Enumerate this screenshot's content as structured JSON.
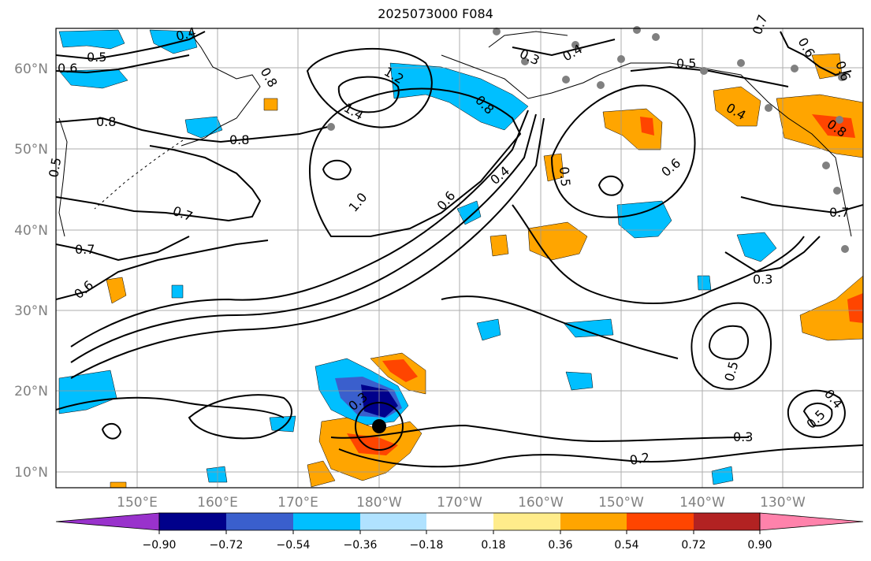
{
  "title": "2025073000 F084",
  "map": {
    "lat_labels": [
      "60°N",
      "50°N",
      "40°N",
      "30°N",
      "20°N",
      "10°N"
    ],
    "lon_labels": [
      "150°E",
      "160°E",
      "170°E",
      "180°W",
      "170°W",
      "160°W",
      "150°W",
      "140°W",
      "130°W"
    ],
    "contour_labels": [
      "0.4",
      "0.5",
      "0.6",
      "0.8",
      "1.2",
      "1.4",
      "0.8",
      "0.3",
      "0.4",
      "0.5",
      "0.7",
      "0.6",
      "0.8",
      "0.5",
      "0.8",
      "0.4",
      "0.8",
      "0.7",
      "1.0",
      "0.6",
      "0.4",
      "0.5",
      "0.6",
      "0.7",
      "0.7",
      "0.3",
      "0.6",
      "0.5",
      "0.3",
      "0.2",
      "0.3",
      "0.4",
      "0.5",
      "0.6"
    ],
    "colors": {
      "land_line": "#000000",
      "grid": "#999999",
      "contour": "#000000",
      "storm_marker": "#000000",
      "station": "#808080"
    }
  },
  "colorbar": {
    "ticks": [
      "−0.90",
      "−0.72",
      "−0.54",
      "−0.36",
      "−0.18",
      "0.18",
      "0.36",
      "0.54",
      "0.72",
      "0.90"
    ],
    "colors": [
      "#9932cc",
      "#00008b",
      "#3a5fcd",
      "#00bfff",
      "#b0e2ff",
      "#ffffff",
      "#ffec8b",
      "#ffa500",
      "#ff4500",
      "#b22222",
      "#ff82ab"
    ]
  }
}
